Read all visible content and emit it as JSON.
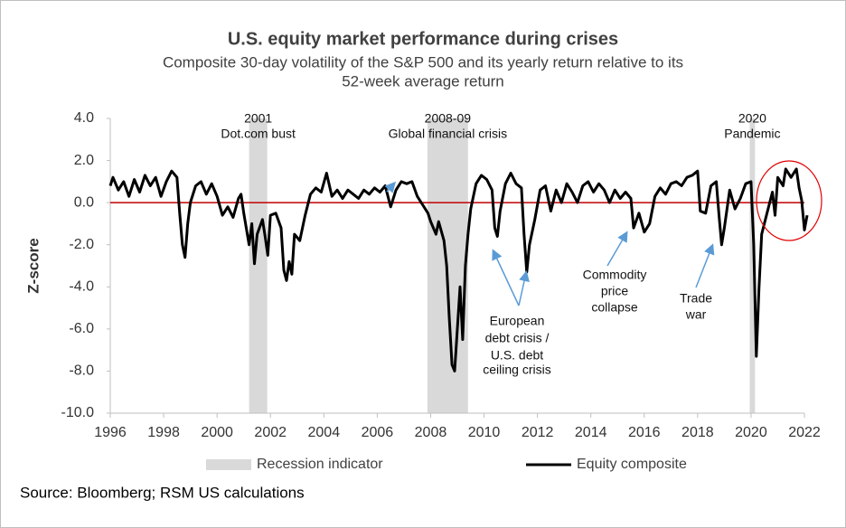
{
  "chart_data": {
    "type": "line",
    "title": "U.S. equity market performance during crises",
    "subtitle": [
      "Composite 30-day volatility of the S&P 500 and its yearly return relative to its",
      "52-week average return"
    ],
    "y_label": "Z-score",
    "source": "Source: Bloomberg; RSM US calculations",
    "xlim": [
      1996,
      2022
    ],
    "xticks": [
      1996,
      1998,
      2000,
      2002,
      2004,
      2006,
      2008,
      2010,
      2012,
      2014,
      2016,
      2018,
      2020,
      2022
    ],
    "ylim": [
      -10,
      4
    ],
    "yticks": [
      {
        "value": 4,
        "label": "4.0"
      },
      {
        "value": 2,
        "label": "2.0"
      },
      {
        "value": 0,
        "label": "0.0"
      },
      {
        "value": -2,
        "label": "-2.0"
      },
      {
        "value": -4,
        "label": "-4.0"
      },
      {
        "value": -6,
        "label": "-6.0"
      },
      {
        "value": -8,
        "label": "-8.0"
      },
      {
        "value": -10,
        "label": "-10.0"
      }
    ],
    "zero_line_color": "#c00000",
    "recession_name": "Recession indicator",
    "recession_color": "#d9d9d9",
    "recessions": [
      {
        "start": 2001.2,
        "end": 2001.88,
        "label": [
          "2001",
          "Dot.com bust"
        ]
      },
      {
        "start": 2007.88,
        "end": 2009.4,
        "label": [
          "2008-09",
          "Global financial crisis"
        ]
      },
      {
        "start": 2019.95,
        "end": 2020.15,
        "label": [
          "2020",
          "Pandemic"
        ]
      }
    ],
    "annotations": [
      [
        "European",
        "debt crisis /",
        "U.S. debt",
        "ceiling crisis"
      ],
      [
        "Commodity",
        "price",
        "collapse"
      ],
      [
        "Trade",
        "war"
      ]
    ],
    "x": [
      1996.0,
      1996.1,
      1996.3,
      1996.5,
      1996.7,
      1996.9,
      1997.1,
      1997.3,
      1997.5,
      1997.7,
      1997.9,
      1998.1,
      1998.3,
      1998.5,
      1998.6,
      1998.7,
      1998.8,
      1998.9,
      1999.0,
      1999.2,
      1999.4,
      1999.6,
      1999.8,
      2000.0,
      2000.2,
      2000.4,
      2000.6,
      2000.8,
      2000.9,
      2001.0,
      2001.2,
      2001.3,
      2001.4,
      2001.5,
      2001.7,
      2001.8,
      2001.9,
      2002.0,
      2002.2,
      2002.4,
      2002.5,
      2002.6,
      2002.7,
      2002.8,
      2002.9,
      2003.1,
      2003.3,
      2003.5,
      2003.7,
      2003.9,
      2004.1,
      2004.3,
      2004.5,
      2004.7,
      2004.9,
      2005.1,
      2005.3,
      2005.5,
      2005.7,
      2005.9,
      2006.1,
      2006.3,
      2006.5,
      2006.7,
      2006.9,
      2007.1,
      2007.3,
      2007.5,
      2007.7,
      2007.9,
      2008.0,
      2008.2,
      2008.3,
      2008.5,
      2008.6,
      2008.7,
      2008.8,
      2008.9,
      2009.0,
      2009.1,
      2009.2,
      2009.3,
      2009.4,
      2009.5,
      2009.7,
      2009.9,
      2010.1,
      2010.3,
      2010.4,
      2010.5,
      2010.6,
      2010.8,
      2011.0,
      2011.2,
      2011.4,
      2011.5,
      2011.6,
      2011.7,
      2011.9,
      2012.1,
      2012.3,
      2012.5,
      2012.7,
      2012.9,
      2013.1,
      2013.3,
      2013.5,
      2013.7,
      2013.9,
      2014.1,
      2014.3,
      2014.5,
      2014.7,
      2014.9,
      2015.1,
      2015.3,
      2015.5,
      2015.6,
      2015.8,
      2016.0,
      2016.2,
      2016.4,
      2016.6,
      2016.8,
      2017.0,
      2017.2,
      2017.4,
      2017.6,
      2017.8,
      2018.0,
      2018.1,
      2018.3,
      2018.5,
      2018.7,
      2018.8,
      2018.9,
      2019.0,
      2019.2,
      2019.4,
      2019.6,
      2019.8,
      2020.0,
      2020.1,
      2020.2,
      2020.3,
      2020.4,
      2020.6,
      2020.8,
      2020.9,
      2021.0,
      2021.2,
      2021.3,
      2021.5,
      2021.7,
      2021.8,
      2021.9,
      2022.0,
      2022.1
    ],
    "series": [
      {
        "name": "Equity composite",
        "color": "#000000",
        "values": [
          0.8,
          1.2,
          0.6,
          1.0,
          0.3,
          1.1,
          0.5,
          1.3,
          0.8,
          1.2,
          0.3,
          1.0,
          1.5,
          1.2,
          -0.5,
          -2.0,
          -2.6,
          -1.0,
          0.0,
          0.8,
          1.0,
          0.4,
          0.9,
          0.3,
          -0.6,
          -0.2,
          -0.7,
          0.2,
          0.4,
          -0.5,
          -2.0,
          -1.0,
          -2.9,
          -1.5,
          -0.8,
          -1.6,
          -2.5,
          -0.6,
          -0.5,
          -1.2,
          -3.2,
          -3.7,
          -2.8,
          -3.4,
          -1.5,
          -1.8,
          -0.6,
          0.4,
          0.7,
          0.5,
          1.4,
          0.3,
          0.6,
          0.2,
          0.6,
          0.4,
          0.2,
          0.6,
          0.4,
          0.7,
          0.5,
          0.8,
          -0.2,
          0.6,
          1.0,
          0.9,
          1.0,
          0.3,
          -0.1,
          -0.5,
          -0.9,
          -1.5,
          -0.9,
          -1.8,
          -3.0,
          -5.5,
          -7.7,
          -8.0,
          -6.0,
          -4.0,
          -6.5,
          -3.0,
          -1.5,
          -0.3,
          0.9,
          1.3,
          1.1,
          0.6,
          -1.2,
          -1.6,
          -0.4,
          0.9,
          1.4,
          0.9,
          0.7,
          -1.5,
          -3.3,
          -2.0,
          -0.8,
          0.6,
          0.8,
          -0.4,
          0.6,
          0.0,
          0.9,
          0.5,
          0.0,
          0.8,
          1.0,
          0.5,
          0.9,
          0.6,
          0.0,
          0.6,
          0.2,
          0.5,
          0.2,
          -1.2,
          -0.5,
          -1.4,
          -1.0,
          0.3,
          0.7,
          0.4,
          0.9,
          1.0,
          0.8,
          1.2,
          1.3,
          1.5,
          -0.4,
          -0.5,
          0.8,
          1.0,
          -0.6,
          -2.0,
          -1.2,
          0.6,
          -0.3,
          0.2,
          0.9,
          1.0,
          -2.0,
          -7.3,
          -4.0,
          -1.5,
          -0.5,
          0.5,
          -0.6,
          1.2,
          0.8,
          1.6,
          1.2,
          1.6,
          0.7,
          0.1,
          -1.3,
          -0.6
        ]
      }
    ]
  }
}
